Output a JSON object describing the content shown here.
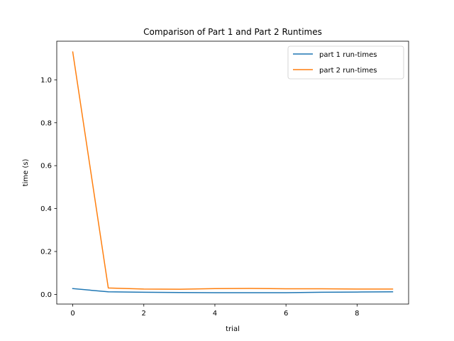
{
  "chart_data": {
    "type": "line",
    "title": "Comparison of Part 1 and Part 2 Runtimes",
    "xlabel": "trial",
    "ylabel": "time (s)",
    "x": [
      0,
      1,
      2,
      3,
      4,
      5,
      6,
      7,
      8,
      9
    ],
    "xlim": [
      -0.45,
      9.45
    ],
    "ylim": [
      -0.045,
      1.18
    ],
    "xticks": [
      0,
      2,
      4,
      6,
      8
    ],
    "xtick_labels": [
      "0",
      "2",
      "4",
      "6",
      "8"
    ],
    "yticks": [
      0.0,
      0.2,
      0.4,
      0.6,
      0.8,
      1.0
    ],
    "ytick_labels": [
      "0.0",
      "0.2",
      "0.4",
      "0.6",
      "0.8",
      "1.0"
    ],
    "grid": false,
    "legend_position": "top-right",
    "series": [
      {
        "name": "part 1 run-times",
        "color": "#1f77b4",
        "values": [
          0.027,
          0.012,
          0.01,
          0.009,
          0.008,
          0.008,
          0.008,
          0.01,
          0.011,
          0.012
        ]
      },
      {
        "name": "part 2 run-times",
        "color": "#ff7f0e",
        "values": [
          1.13,
          0.03,
          0.025,
          0.024,
          0.027,
          0.028,
          0.026,
          0.026,
          0.025,
          0.025
        ]
      }
    ]
  }
}
